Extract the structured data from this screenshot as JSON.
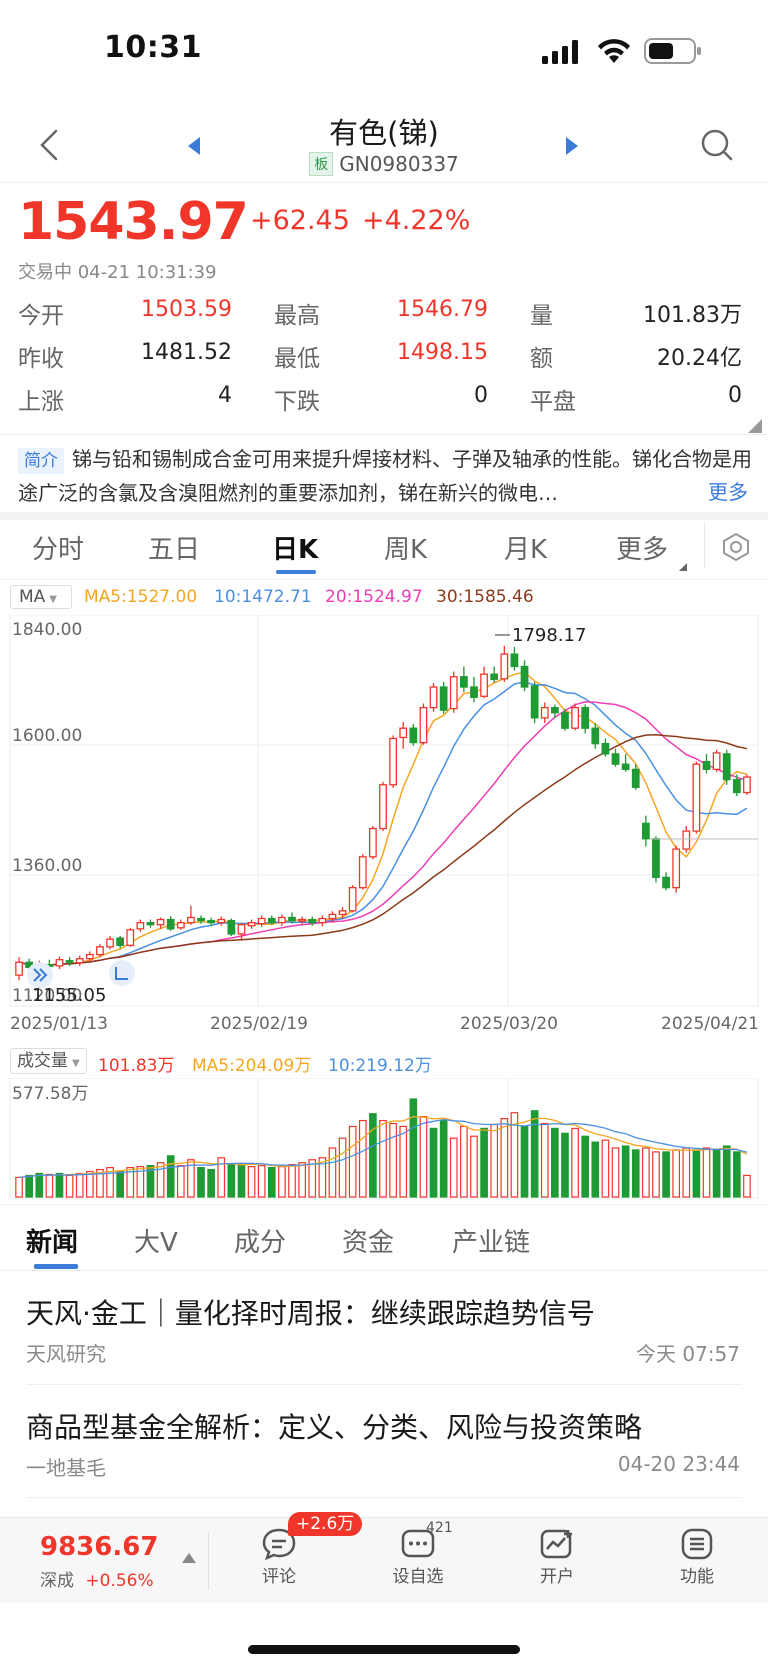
{
  "status_bar": {
    "time": "10:31"
  },
  "header": {
    "title": "有色(锑)",
    "board_tag": "板",
    "code": "GN0980337"
  },
  "quote": {
    "price": "1543.97",
    "change": "+62.45",
    "change_pct": "+4.22%",
    "status": "交易中 04-21 10:31:39",
    "stats": [
      {
        "label": "今开",
        "value": "1503.59",
        "color": "#f0362a"
      },
      {
        "label": "最高",
        "value": "1546.79",
        "color": "#f0362a"
      },
      {
        "label": "量",
        "value": "101.83万",
        "color": "#222222"
      },
      {
        "label": "昨收",
        "value": "1481.52",
        "color": "#222222"
      },
      {
        "label": "最低",
        "value": "1498.15",
        "color": "#f0362a"
      },
      {
        "label": "额",
        "value": "20.24亿",
        "color": "#222222"
      },
      {
        "label": "上涨",
        "value": "4",
        "color": "#222222"
      },
      {
        "label": "下跌",
        "value": "0",
        "color": "#222222"
      },
      {
        "label": "平盘",
        "value": "0",
        "color": "#222222"
      }
    ]
  },
  "intro": {
    "tag": "简介",
    "text": "锑与铅和锡制成合金可用来提升焊接材料、子弹及轴承的性能。锑化合物是用途广泛的含氯及含溴阻燃剂的重要添加剂，锑在新兴的微电…",
    "more": "更多"
  },
  "chart_tabs": [
    "分时",
    "五日",
    "日K",
    "周K",
    "月K",
    "更多"
  ],
  "chart_tab_active": 2,
  "kline_legend": {
    "indicator": "MA",
    "ma5": "MA5:1527.00",
    "ma10": "10:1472.71",
    "ma20": "20:1524.97",
    "ma30": "30:1585.46"
  },
  "volume_legend": {
    "indicator": "成交量",
    "vol": "101.83万",
    "ma5": "MA5:204.09万",
    "ma10": "10:219.12万",
    "max": "577.58万"
  },
  "colors": {
    "up": "#f0362a",
    "down": "#1f9a34",
    "ma5": "#f5a623",
    "ma10": "#4a90e2",
    "ma20": "#ee3db5",
    "ma30": "#8b3a1a",
    "accent": "#3a7cd8"
  },
  "chart_data": {
    "type": "candlestick",
    "y_ticks": [
      "1840.00",
      "1600.00",
      "1360.00",
      "1120.00"
    ],
    "ylim": [
      1100,
      1860
    ],
    "x_labels": [
      "2025/01/13",
      "2025/02/19",
      "2025/03/20",
      "2025/04/21"
    ],
    "annotations": {
      "high_label": "1798.17",
      "low_label": "1155.05"
    },
    "candles": [
      [
        1160,
        1185,
        1150,
        1195
      ],
      [
        1185,
        1175,
        1168,
        1192
      ],
      [
        1172,
        1180,
        1165,
        1188
      ],
      [
        1180,
        1178,
        1170,
        1190
      ],
      [
        1178,
        1190,
        1172,
        1196
      ],
      [
        1188,
        1185,
        1178,
        1195
      ],
      [
        1184,
        1192,
        1178,
        1198
      ],
      [
        1192,
        1200,
        1186,
        1206
      ],
      [
        1200,
        1215,
        1195,
        1220
      ],
      [
        1215,
        1230,
        1210,
        1236
      ],
      [
        1232,
        1218,
        1212,
        1236
      ],
      [
        1218,
        1248,
        1215,
        1252
      ],
      [
        1250,
        1262,
        1244,
        1268
      ],
      [
        1262,
        1258,
        1252,
        1268
      ],
      [
        1258,
        1268,
        1250,
        1272
      ],
      [
        1268,
        1250,
        1246,
        1275
      ],
      [
        1252,
        1262,
        1248,
        1268
      ],
      [
        1262,
        1272,
        1258,
        1295
      ],
      [
        1270,
        1266,
        1260,
        1276
      ],
      [
        1266,
        1262,
        1255,
        1272
      ],
      [
        1262,
        1268,
        1256,
        1274
      ],
      [
        1266,
        1240,
        1236,
        1270
      ],
      [
        1240,
        1258,
        1230,
        1262
      ],
      [
        1256,
        1262,
        1250,
        1268
      ],
      [
        1260,
        1270,
        1254,
        1276
      ],
      [
        1270,
        1262,
        1258,
        1276
      ],
      [
        1262,
        1272,
        1256,
        1278
      ],
      [
        1272,
        1266,
        1260,
        1282
      ],
      [
        1266,
        1268,
        1258,
        1274
      ],
      [
        1268,
        1262,
        1256,
        1274
      ],
      [
        1262,
        1270,
        1255,
        1276
      ],
      [
        1270,
        1278,
        1262,
        1284
      ],
      [
        1278,
        1285,
        1270,
        1292
      ],
      [
        1285,
        1330,
        1282,
        1335
      ],
      [
        1330,
        1390,
        1326,
        1395
      ],
      [
        1390,
        1445,
        1385,
        1450
      ],
      [
        1445,
        1530,
        1440,
        1536
      ],
      [
        1530,
        1620,
        1524,
        1626
      ],
      [
        1622,
        1640,
        1600,
        1652
      ],
      [
        1640,
        1612,
        1606,
        1648
      ],
      [
        1612,
        1680,
        1608,
        1688
      ],
      [
        1680,
        1720,
        1672,
        1728
      ],
      [
        1720,
        1675,
        1668,
        1730
      ],
      [
        1678,
        1740,
        1670,
        1750
      ],
      [
        1740,
        1720,
        1710,
        1760
      ],
      [
        1720,
        1700,
        1690,
        1740
      ],
      [
        1702,
        1745,
        1698,
        1760
      ],
      [
        1745,
        1735,
        1728,
        1760
      ],
      [
        1736,
        1784,
        1730,
        1800
      ],
      [
        1784,
        1760,
        1752,
        1798
      ],
      [
        1760,
        1720,
        1712,
        1772
      ],
      [
        1722,
        1660,
        1650,
        1730
      ],
      [
        1660,
        1680,
        1650,
        1690
      ],
      [
        1680,
        1670,
        1660,
        1686
      ],
      [
        1670,
        1640,
        1635,
        1678
      ],
      [
        1640,
        1680,
        1636,
        1688
      ],
      [
        1680,
        1640,
        1630,
        1686
      ],
      [
        1640,
        1610,
        1600,
        1650
      ],
      [
        1610,
        1590,
        1585,
        1620
      ],
      [
        1590,
        1570,
        1565,
        1600
      ],
      [
        1570,
        1560,
        1555,
        1590
      ],
      [
        1560,
        1525,
        1520,
        1570
      ],
      [
        1455,
        1425,
        1410,
        1470
      ],
      [
        1425,
        1350,
        1340,
        1430
      ],
      [
        1350,
        1330,
        1325,
        1360
      ],
      [
        1330,
        1405,
        1320,
        1412
      ],
      [
        1405,
        1440,
        1398,
        1450
      ],
      [
        1440,
        1570,
        1435,
        1575
      ],
      [
        1575,
        1560,
        1552,
        1590
      ],
      [
        1560,
        1592,
        1555,
        1598
      ],
      [
        1590,
        1540,
        1530,
        1598
      ],
      [
        1540,
        1515,
        1508,
        1550
      ],
      [
        1515,
        1545,
        1510,
        1550
      ]
    ],
    "volumes": [
      [
        20,
        1
      ],
      [
        22,
        0
      ],
      [
        24,
        0
      ],
      [
        23,
        1
      ],
      [
        24,
        0
      ],
      [
        22,
        1
      ],
      [
        24,
        1
      ],
      [
        26,
        1
      ],
      [
        28,
        1
      ],
      [
        30,
        1
      ],
      [
        26,
        0
      ],
      [
        30,
        1
      ],
      [
        31,
        1
      ],
      [
        32,
        0
      ],
      [
        35,
        1
      ],
      [
        42,
        0
      ],
      [
        32,
        1
      ],
      [
        38,
        1
      ],
      [
        30,
        0
      ],
      [
        28,
        0
      ],
      [
        40,
        1
      ],
      [
        34,
        0
      ],
      [
        33,
        0
      ],
      [
        31,
        1
      ],
      [
        32,
        1
      ],
      [
        30,
        0
      ],
      [
        31,
        1
      ],
      [
        33,
        1
      ],
      [
        35,
        1
      ],
      [
        38,
        1
      ],
      [
        40,
        1
      ],
      [
        50,
        1
      ],
      [
        60,
        1
      ],
      [
        72,
        1
      ],
      [
        78,
        1
      ],
      [
        85,
        0
      ],
      [
        78,
        1
      ],
      [
        75,
        1
      ],
      [
        72,
        1
      ],
      [
        100,
        0
      ],
      [
        82,
        1
      ],
      [
        70,
        0
      ],
      [
        78,
        0
      ],
      [
        60,
        1
      ],
      [
        72,
        1
      ],
      [
        62,
        1
      ],
      [
        70,
        0
      ],
      [
        74,
        1
      ],
      [
        80,
        1
      ],
      [
        86,
        1
      ],
      [
        72,
        0
      ],
      [
        88,
        0
      ],
      [
        75,
        1
      ],
      [
        70,
        0
      ],
      [
        65,
        0
      ],
      [
        70,
        1
      ],
      [
        62,
        0
      ],
      [
        56,
        0
      ],
      [
        58,
        1
      ],
      [
        50,
        1
      ],
      [
        52,
        0
      ],
      [
        48,
        0
      ],
      [
        50,
        1
      ],
      [
        46,
        1
      ],
      [
        46,
        0
      ],
      [
        48,
        1
      ],
      [
        50,
        1
      ],
      [
        48,
        0
      ],
      [
        50,
        1
      ],
      [
        48,
        0
      ],
      [
        52,
        0
      ],
      [
        46,
        0
      ],
      [
        22,
        1
      ]
    ]
  },
  "news": {
    "tabs": [
      "新闻",
      "大V",
      "成分",
      "资金",
      "产业链"
    ],
    "active": 0,
    "items": [
      {
        "title": "天风·金工｜量化择时周报：继续跟踪趋势信号",
        "source": "天风研究",
        "time": "今天 07:57"
      },
      {
        "title": "商品型基金全解析：定义、分类、风险与投资策略",
        "source": "一地基毛",
        "time": "04-20 23:44"
      }
    ]
  },
  "bottom_bar": {
    "index_value": "9836.67",
    "index_name": "深成",
    "index_change": "+0.56%",
    "comment_badge": "+2.6万",
    "watchlist_badge": "421",
    "items": [
      "评论",
      "设自选",
      "开户",
      "功能"
    ]
  }
}
